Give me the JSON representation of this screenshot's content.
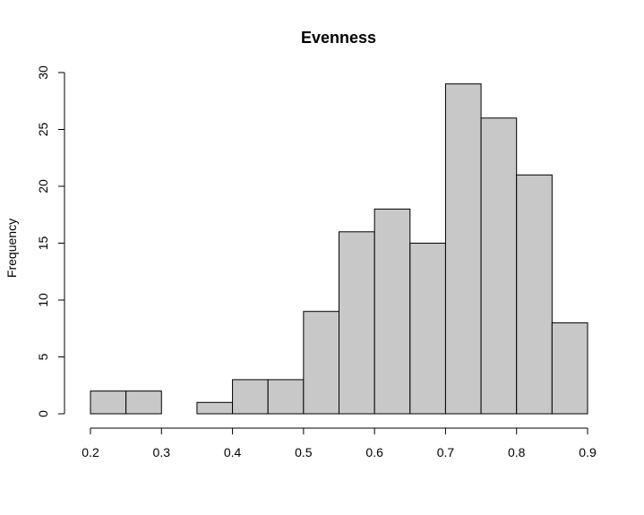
{
  "chart_data": {
    "type": "bar",
    "title": "Evenness",
    "xlabel": "",
    "ylabel": "Frequency",
    "bins": [
      {
        "start": 0.2,
        "end": 0.25,
        "value": 2
      },
      {
        "start": 0.25,
        "end": 0.3,
        "value": 2
      },
      {
        "start": 0.3,
        "end": 0.35,
        "value": 0
      },
      {
        "start": 0.35,
        "end": 0.4,
        "value": 1
      },
      {
        "start": 0.4,
        "end": 0.45,
        "value": 3
      },
      {
        "start": 0.45,
        "end": 0.5,
        "value": 3
      },
      {
        "start": 0.5,
        "end": 0.55,
        "value": 9
      },
      {
        "start": 0.55,
        "end": 0.6,
        "value": 16
      },
      {
        "start": 0.6,
        "end": 0.65,
        "value": 18
      },
      {
        "start": 0.65,
        "end": 0.7,
        "value": 15
      },
      {
        "start": 0.7,
        "end": 0.75,
        "value": 29
      },
      {
        "start": 0.75,
        "end": 0.8,
        "value": 26
      },
      {
        "start": 0.8,
        "end": 0.85,
        "value": 21
      },
      {
        "start": 0.85,
        "end": 0.9,
        "value": 8
      }
    ],
    "xlim": [
      0.2,
      0.9
    ],
    "ylim": [
      0,
      30
    ],
    "x_ticks": [
      "0.2",
      "0.3",
      "0.4",
      "0.5",
      "0.6",
      "0.7",
      "0.8",
      "0.9"
    ],
    "y_ticks": [
      "0",
      "5",
      "10",
      "15",
      "20",
      "25",
      "30"
    ],
    "grid": false,
    "bar_color": "#c8c8c8",
    "edge_color": "#000000"
  }
}
